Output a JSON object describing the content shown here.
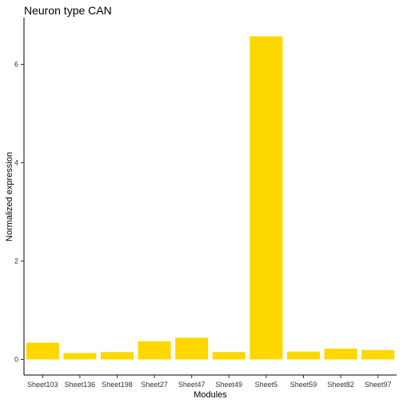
{
  "chart_data": {
    "type": "bar",
    "title": "Neuron type CAN",
    "xlabel": "Modules",
    "ylabel": "Normalized expression",
    "categories": [
      "Sheet103",
      "Sheet136",
      "Sheet198",
      "Sheet27",
      "Sheet47",
      "Sheet49",
      "Sheet5",
      "Sheet59",
      "Sheet82",
      "Sheet97"
    ],
    "values": [
      0.34,
      0.13,
      0.15,
      0.37,
      0.44,
      0.15,
      6.57,
      0.16,
      0.22,
      0.19
    ],
    "ylim": [
      0,
      6.85
    ],
    "yticks": [
      0,
      2,
      4,
      6
    ],
    "bar_color": "#FFD700",
    "grid": false,
    "legend": "none"
  }
}
